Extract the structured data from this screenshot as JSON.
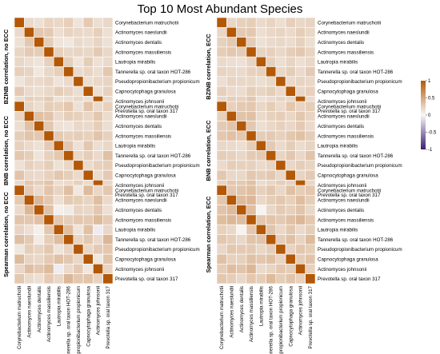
{
  "chart_data": {
    "type": "heatmap",
    "title": "Top 10 Most Abundant Species",
    "species": [
      "Corynebacterium matruchotii",
      "Actinomyces naeslundii",
      "Actinomyces dentalis",
      "Actinomyces massiliensis",
      "Lautropia mirabilis",
      "Tannerella sp. oral taxon HOT-286",
      "Pseudopropionibacterium propionicum",
      "Capnocytophaga granulosa",
      "Actinomyces johnsonii",
      "Prevotella sp. oral taxon 317"
    ],
    "colorbar": {
      "min": -1,
      "max": 1,
      "ticks": [
        "1",
        "0.5",
        "0",
        "-0.5",
        "-1"
      ],
      "low_color": "#3b1f74",
      "mid_color": "#f7f7f7",
      "high_color": "#b35806"
    },
    "panels": [
      {
        "label": "BZINB correlation, no ECC",
        "values": [
          [
            1,
            0.18,
            0.14,
            0.22,
            0.2,
            0.25,
            0.12,
            0.28,
            0.16,
            0.2
          ],
          [
            0.18,
            1,
            0.3,
            0.28,
            0.16,
            0.22,
            0.2,
            0.18,
            0.25,
            0.15
          ],
          [
            0.14,
            0.3,
            1,
            0.26,
            0.12,
            0.1,
            0.18,
            0.16,
            0.22,
            0.14
          ],
          [
            0.22,
            0.28,
            0.26,
            1,
            0.24,
            0.2,
            0.22,
            0.2,
            0.28,
            0.2
          ],
          [
            0.2,
            0.16,
            0.12,
            0.24,
            1,
            0.25,
            0.12,
            0.26,
            0.14,
            0.18
          ],
          [
            0.25,
            0.22,
            0.1,
            0.2,
            0.25,
            1,
            0.18,
            0.22,
            0.16,
            0.3
          ],
          [
            0.12,
            0.2,
            0.18,
            0.22,
            0.12,
            0.18,
            1,
            0.16,
            0.2,
            0.22
          ],
          [
            0.28,
            0.18,
            0.16,
            0.2,
            0.26,
            0.22,
            0.16,
            1,
            0.15,
            0.24
          ],
          [
            0.16,
            0.25,
            0.22,
            0.28,
            0.14,
            0.16,
            0.2,
            0.15,
            1,
            0.18
          ],
          [
            0.2,
            0.15,
            0.14,
            0.2,
            0.18,
            0.3,
            0.22,
            0.24,
            0.18,
            1
          ]
        ]
      },
      {
        "label": "BZINB correlation, ECC",
        "values": [
          [
            1,
            0.2,
            0.24,
            0.26,
            0.18,
            0.22,
            0.16,
            0.25,
            0.2,
            0.22
          ],
          [
            0.2,
            1,
            0.28,
            0.3,
            0.16,
            0.2,
            0.22,
            0.18,
            0.26,
            0.2
          ],
          [
            0.24,
            0.28,
            1,
            0.27,
            0.14,
            0.18,
            0.2,
            0.17,
            0.24,
            0.16
          ],
          [
            0.26,
            0.3,
            0.27,
            1,
            0.22,
            0.24,
            0.2,
            0.26,
            0.3,
            0.22
          ],
          [
            0.18,
            0.16,
            0.14,
            0.22,
            1,
            0.24,
            0.16,
            0.22,
            0.15,
            0.2
          ],
          [
            0.22,
            0.2,
            0.18,
            0.24,
            0.24,
            1,
            0.2,
            0.26,
            0.18,
            0.28
          ],
          [
            0.16,
            0.22,
            0.2,
            0.2,
            0.16,
            0.2,
            1,
            0.18,
            0.22,
            0.2
          ],
          [
            0.25,
            0.18,
            0.17,
            0.26,
            0.22,
            0.26,
            0.18,
            1,
            0.2,
            0.24
          ],
          [
            0.2,
            0.26,
            0.24,
            0.3,
            0.15,
            0.18,
            0.22,
            0.2,
            1,
            0.18
          ],
          [
            0.22,
            0.2,
            0.16,
            0.22,
            0.2,
            0.28,
            0.2,
            0.24,
            0.18,
            1
          ]
        ]
      },
      {
        "label": "BNB correlation, no ECC",
        "values": [
          [
            1,
            0.22,
            0.16,
            0.26,
            0.24,
            0.3,
            0.14,
            0.32,
            0.18,
            0.24
          ],
          [
            0.22,
            1,
            0.34,
            0.32,
            0.18,
            0.26,
            0.24,
            0.2,
            0.3,
            0.17
          ],
          [
            0.16,
            0.34,
            1,
            0.3,
            0.14,
            0.12,
            0.2,
            0.18,
            0.26,
            0.16
          ],
          [
            0.26,
            0.32,
            0.3,
            1,
            0.28,
            0.24,
            0.26,
            0.24,
            0.32,
            0.24
          ],
          [
            0.24,
            0.18,
            0.14,
            0.28,
            1,
            0.3,
            0.14,
            0.3,
            0.16,
            0.2
          ],
          [
            0.3,
            0.26,
            0.12,
            0.24,
            0.3,
            1,
            0.2,
            0.26,
            0.18,
            0.34
          ],
          [
            0.14,
            0.24,
            0.2,
            0.26,
            0.14,
            0.2,
            1,
            0.18,
            0.24,
            0.26
          ],
          [
            0.32,
            0.2,
            0.18,
            0.24,
            0.3,
            0.26,
            0.18,
            1,
            0.17,
            0.28
          ],
          [
            0.18,
            0.3,
            0.26,
            0.32,
            0.16,
            0.18,
            0.24,
            0.17,
            1,
            0.2
          ],
          [
            0.24,
            0.17,
            0.16,
            0.24,
            0.2,
            0.34,
            0.26,
            0.28,
            0.2,
            1
          ]
        ]
      },
      {
        "label": "BNB correlation, ECC",
        "values": [
          [
            1,
            0.24,
            0.28,
            0.3,
            0.2,
            0.26,
            0.18,
            0.3,
            0.22,
            0.26
          ],
          [
            0.24,
            1,
            0.32,
            0.34,
            0.18,
            0.24,
            0.26,
            0.2,
            0.3,
            0.22
          ],
          [
            0.28,
            0.32,
            1,
            0.3,
            0.16,
            0.2,
            0.24,
            0.2,
            0.28,
            0.18
          ],
          [
            0.3,
            0.34,
            0.3,
            1,
            0.26,
            0.28,
            0.24,
            0.3,
            0.34,
            0.26
          ],
          [
            0.2,
            0.18,
            0.16,
            0.26,
            1,
            0.28,
            0.18,
            0.26,
            0.17,
            0.22
          ],
          [
            0.26,
            0.24,
            0.2,
            0.28,
            0.28,
            1,
            0.22,
            0.3,
            0.2,
            0.32
          ],
          [
            0.18,
            0.26,
            0.24,
            0.24,
            0.18,
            0.22,
            1,
            0.2,
            0.26,
            0.22
          ],
          [
            0.3,
            0.2,
            0.2,
            0.3,
            0.26,
            0.3,
            0.2,
            1,
            0.22,
            0.28
          ],
          [
            0.22,
            0.3,
            0.28,
            0.34,
            0.17,
            0.2,
            0.26,
            0.22,
            1,
            0.2
          ],
          [
            0.26,
            0.22,
            0.18,
            0.26,
            0.22,
            0.32,
            0.22,
            0.28,
            0.2,
            1
          ]
        ]
      },
      {
        "label": "Spearman correlation, no ECC",
        "values": [
          [
            1,
            0.28,
            0.18,
            0.32,
            0.22,
            0.35,
            0.1,
            0.38,
            0.2,
            0.3
          ],
          [
            0.28,
            1,
            0.4,
            0.3,
            0.15,
            0.28,
            0.26,
            0.22,
            0.35,
            0.18
          ],
          [
            0.18,
            0.4,
            1,
            0.34,
            0.05,
            0.08,
            0.22,
            0.2,
            0.3,
            0.15
          ],
          [
            0.32,
            0.3,
            0.34,
            1,
            0.3,
            0.26,
            0.3,
            0.28,
            0.38,
            0.28
          ],
          [
            0.22,
            0.15,
            0.05,
            0.3,
            1,
            0.36,
            0.12,
            0.34,
            -0.05,
            0.2
          ],
          [
            0.35,
            0.28,
            0.08,
            0.26,
            0.36,
            1,
            0.22,
            0.3,
            0.18,
            0.4
          ],
          [
            0.1,
            0.26,
            0.22,
            0.3,
            0.12,
            0.22,
            1,
            0.2,
            0.28,
            0.3
          ],
          [
            0.38,
            0.22,
            0.2,
            0.28,
            0.34,
            0.3,
            0.2,
            1,
            0.1,
            0.32
          ],
          [
            0.2,
            0.35,
            0.3,
            0.38,
            -0.05,
            0.18,
            0.28,
            0.1,
            1,
            0.22
          ],
          [
            0.3,
            0.18,
            0.15,
            0.28,
            0.2,
            0.4,
            0.3,
            0.32,
            0.22,
            1
          ]
        ]
      },
      {
        "label": "Spearman correlation, ECC",
        "values": [
          [
            1,
            0.3,
            0.32,
            0.36,
            0.24,
            0.3,
            0.2,
            0.34,
            0.26,
            0.3
          ],
          [
            0.3,
            1,
            0.38,
            0.4,
            0.2,
            0.26,
            0.3,
            0.24,
            0.36,
            0.26
          ],
          [
            0.32,
            0.38,
            1,
            0.36,
            0.02,
            0.2,
            0.28,
            0.24,
            0.32,
            0.2
          ],
          [
            0.36,
            0.4,
            0.36,
            1,
            0.3,
            0.32,
            0.28,
            0.34,
            0.4,
            0.3
          ],
          [
            0.24,
            0.2,
            0.02,
            0.3,
            1,
            0.32,
            0.2,
            0.3,
            0.18,
            0.26
          ],
          [
            0.3,
            0.26,
            0.2,
            0.32,
            0.32,
            1,
            0.26,
            0.34,
            0.22,
            0.38
          ],
          [
            0.2,
            0.3,
            0.28,
            0.28,
            0.2,
            0.26,
            1,
            0.22,
            0.3,
            0.26
          ],
          [
            0.34,
            0.24,
            0.24,
            0.34,
            0.3,
            0.34,
            0.22,
            1,
            0.26,
            0.32
          ],
          [
            0.26,
            0.36,
            0.32,
            0.4,
            0.18,
            0.22,
            0.3,
            0.26,
            1,
            0.24
          ],
          [
            0.3,
            0.26,
            0.2,
            0.3,
            0.26,
            0.38,
            0.26,
            0.32,
            0.24,
            1
          ]
        ]
      }
    ]
  }
}
